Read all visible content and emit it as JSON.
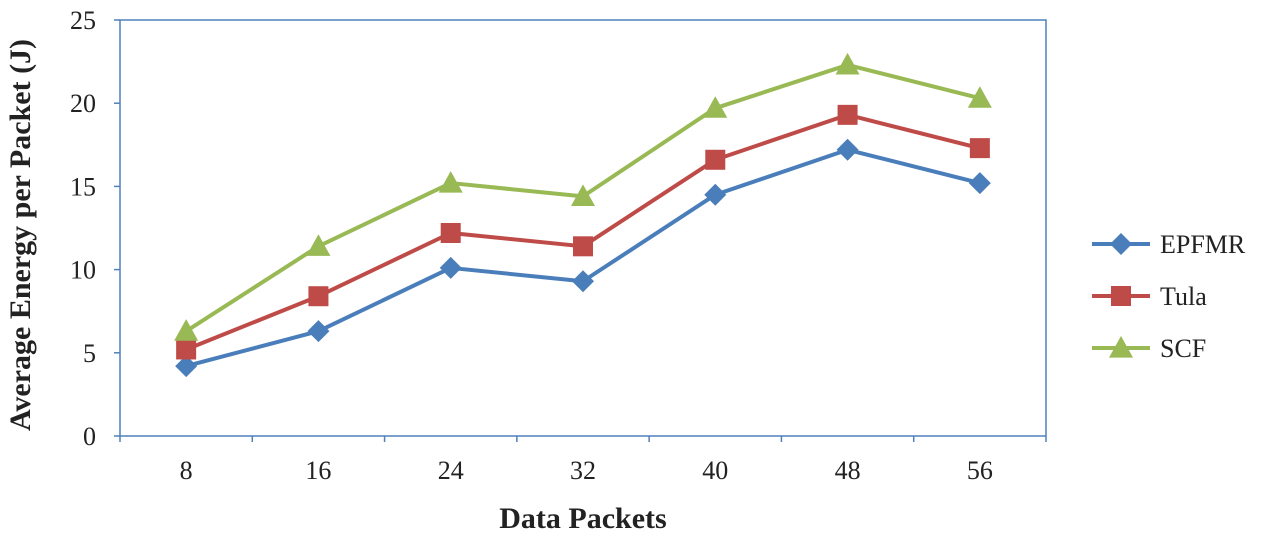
{
  "chart_data": {
    "type": "line",
    "title": "",
    "xlabel": "Data Packets",
    "ylabel": "Average Energy per Packet (J)",
    "categories": [
      "8",
      "16",
      "24",
      "32",
      "40",
      "48",
      "56"
    ],
    "ylim": [
      0,
      25
    ],
    "yticks": [
      0,
      5,
      10,
      15,
      20,
      25
    ],
    "grid": false,
    "legend_position": "right",
    "series": [
      {
        "name": "EPFMR",
        "values": [
          4.2,
          6.3,
          10.1,
          9.3,
          14.5,
          17.2,
          15.2
        ],
        "color": "#4A7EBB",
        "marker": "diamond"
      },
      {
        "name": "Tula",
        "values": [
          5.2,
          8.4,
          12.2,
          11.4,
          16.6,
          19.3,
          17.3
        ],
        "color": "#BE4B48",
        "marker": "square"
      },
      {
        "name": "SCF",
        "values": [
          6.3,
          11.4,
          15.2,
          14.4,
          19.7,
          22.3,
          20.3
        ],
        "color": "#98B954",
        "marker": "triangle"
      }
    ],
    "frame_color": "#4F81BD"
  }
}
